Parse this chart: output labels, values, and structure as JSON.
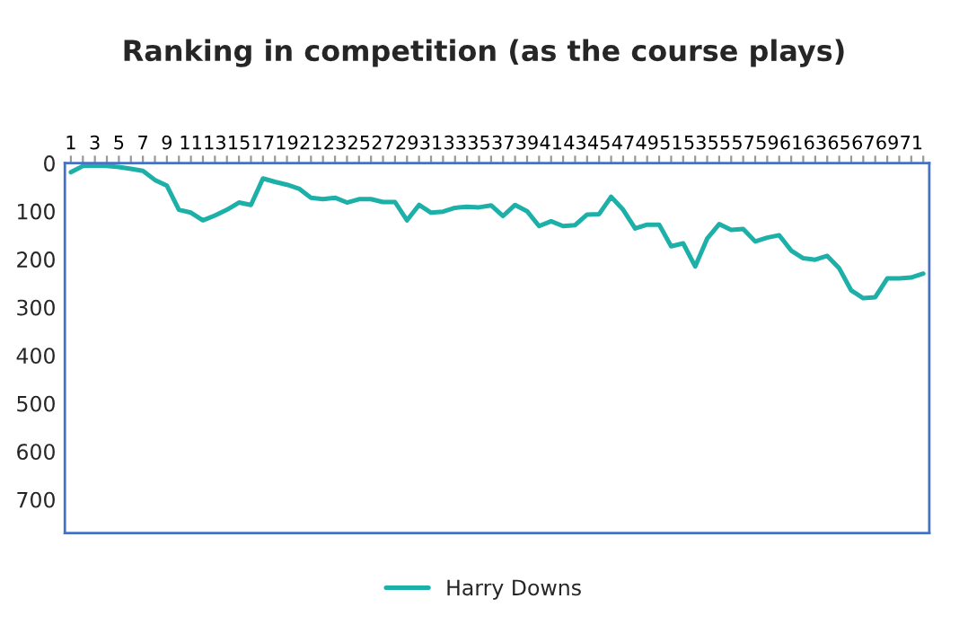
{
  "chart_data": {
    "type": "line",
    "title": "Ranking in competition (as the course plays)",
    "categories": [
      "1",
      null,
      "3",
      null,
      "5",
      null,
      "7",
      null,
      "9",
      null,
      "11",
      null,
      "13",
      null,
      "15",
      null,
      "17",
      null,
      "19",
      null,
      "21",
      null,
      "23",
      null,
      "25",
      null,
      "27",
      null,
      "29",
      null,
      "31",
      null,
      "33",
      null,
      "35",
      null,
      "37",
      null,
      "39",
      null,
      "41",
      null,
      "43",
      null,
      "45",
      null,
      "47",
      null,
      "49",
      null,
      "51",
      null,
      "53",
      null,
      "55",
      null,
      "57",
      null,
      "59",
      null,
      "61",
      null,
      "63",
      null,
      "65",
      null,
      "67",
      null,
      "69",
      null,
      "71",
      null
    ],
    "series": [
      {
        "name": "Harry Downs",
        "color": "#1cb0a8",
        "values": [
          19,
          6,
          5,
          6,
          8,
          12,
          16,
          35,
          47,
          97,
          103,
          119,
          109,
          97,
          82,
          87,
          32,
          39,
          45,
          53,
          72,
          75,
          72,
          82,
          75,
          75,
          81,
          81,
          119,
          87,
          103,
          101,
          93,
          91,
          92,
          88,
          110,
          87,
          100,
          131,
          121,
          131,
          129,
          107,
          106,
          70,
          97,
          136,
          128,
          128,
          173,
          167,
          215,
          157,
          127,
          139,
          137,
          163,
          155,
          150,
          182,
          198,
          201,
          193,
          219,
          265,
          281,
          279,
          240,
          240,
          238,
          230
        ]
      }
    ],
    "ylim": [
      770,
      0
    ],
    "yticks": [
      0,
      100,
      200,
      300,
      400,
      500,
      600,
      700
    ],
    "grid": false,
    "legend": "bottom",
    "marker": "none",
    "line_style": "solid"
  }
}
